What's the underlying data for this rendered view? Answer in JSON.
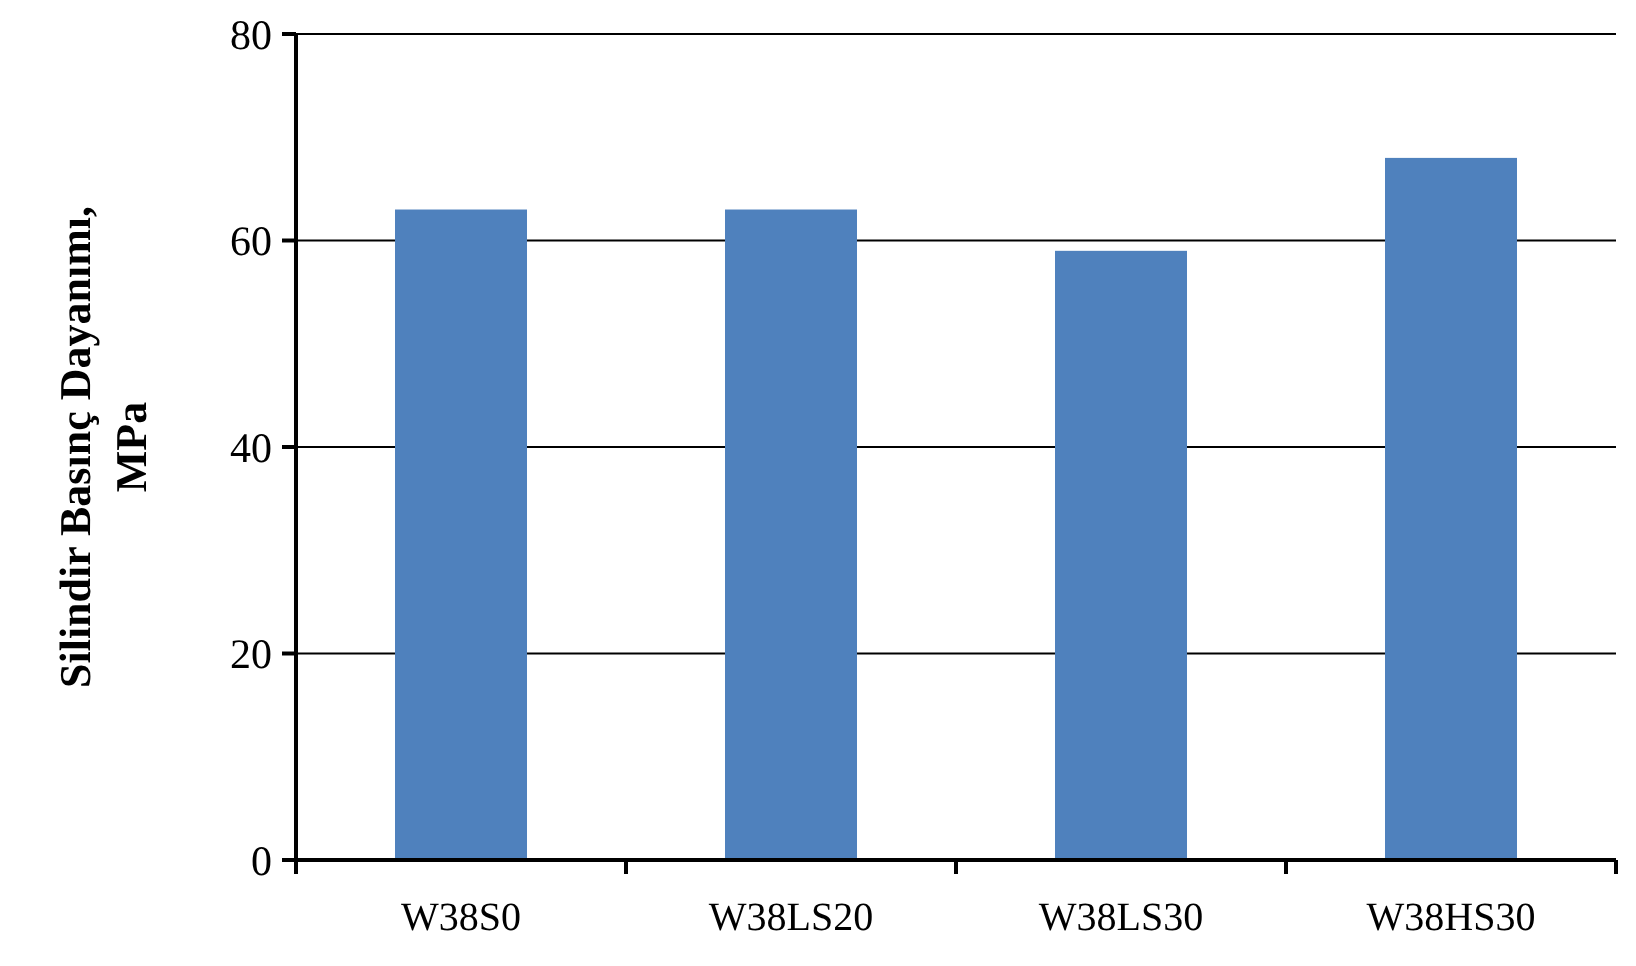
{
  "chart_data": {
    "type": "bar",
    "ylabel": "Silindir Basınç Dayanımı, MPa",
    "categories": [
      "W38S0",
      "W38LS20",
      "W38LS30",
      "W38HS30"
    ],
    "values": [
      63,
      63,
      59,
      68
    ],
    "color": "#4f81bd",
    "ylim": [
      0,
      80
    ],
    "yticks": [
      0,
      20,
      40,
      60,
      80
    ],
    "grid": "y"
  }
}
